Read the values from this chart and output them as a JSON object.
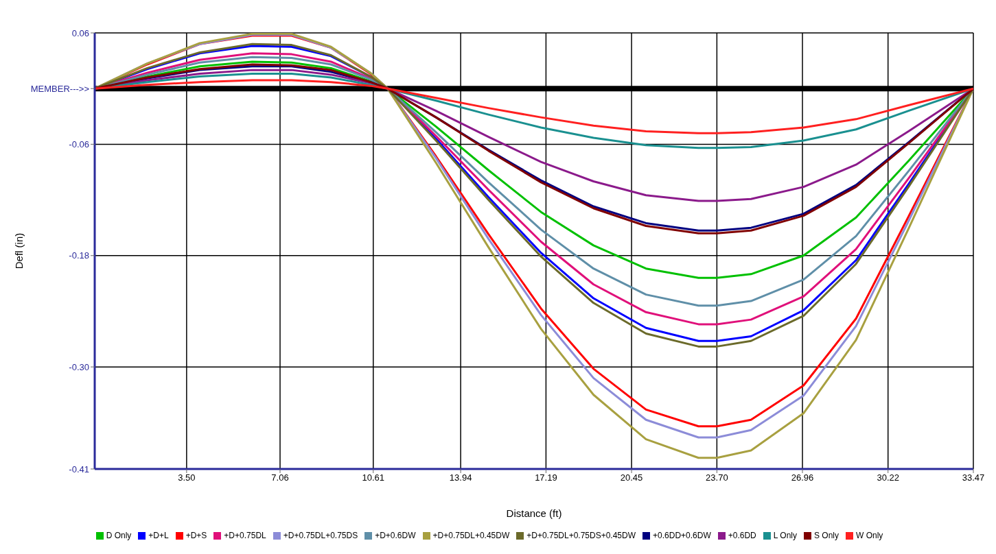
{
  "chart_data": {
    "type": "line",
    "xlabel": "Distance (ft)",
    "ylabel": "Defl (in)",
    "x": [
      0,
      2,
      4,
      6,
      7.5,
      9,
      10.5,
      11.16,
      13,
      15,
      17,
      19,
      21,
      23,
      23.7,
      25,
      27,
      29,
      31,
      33.47
    ],
    "xlim": [
      0,
      33.47
    ],
    "xticks": [
      {
        "value": 3.5,
        "label": "3.50"
      },
      7.06,
      10.61,
      13.94,
      17.19,
      20.45,
      {
        "value": 23.7,
        "label": "23.70"
      },
      26.96,
      30.22,
      33.47
    ],
    "ylim": [
      -0.41,
      0.06
    ],
    "yticks": [
      0.06,
      {
        "value": 0,
        "label": "MEMBER--->>"
      },
      -0.06,
      -0.18,
      {
        "value": -0.3,
        "label": "-0.30"
      },
      -0.41
    ],
    "grid": true,
    "legend": "bottom",
    "marker": "none",
    "line_style": "solid",
    "ref_lines": [
      {
        "axis": "y",
        "value": 0,
        "color": "#000000"
      }
    ],
    "series": [
      {
        "name": "D Only",
        "color": "#00c000",
        "values": [
          0,
          0.013,
          0.024,
          0.029,
          0.028,
          0.022,
          0.008,
          0,
          -0.041,
          -0.088,
          -0.133,
          -0.169,
          -0.194,
          -0.204,
          -0.204,
          -0.2,
          -0.18,
          -0.139,
          -0.078,
          0
        ]
      },
      {
        "name": "+D+L",
        "color": "#0000ff",
        "values": [
          0,
          0.021,
          0.038,
          0.046,
          0.045,
          0.035,
          0.013,
          0,
          -0.054,
          -0.117,
          -0.177,
          -0.226,
          -0.258,
          -0.272,
          -0.272,
          -0.267,
          -0.239,
          -0.185,
          -0.103,
          0
        ]
      },
      {
        "name": "+D+S",
        "color": "#ff0000",
        "values": [
          0,
          0.026,
          0.048,
          0.057,
          0.057,
          0.044,
          0.016,
          0,
          -0.073,
          -0.157,
          -0.237,
          -0.302,
          -0.346,
          -0.364,
          -0.364,
          -0.357,
          -0.32,
          -0.248,
          -0.138,
          0
        ]
      },
      {
        "name": "+D+0.75DL",
        "color": "#e0107a",
        "values": [
          0,
          0.017,
          0.031,
          0.038,
          0.037,
          0.029,
          0.011,
          0,
          -0.051,
          -0.109,
          -0.165,
          -0.211,
          -0.241,
          -0.254,
          -0.254,
          -0.249,
          -0.224,
          -0.173,
          -0.097,
          0
        ]
      },
      {
        "name": "+D+0.75DL+0.75DS",
        "color": "#8c8cd8",
        "values": [
          0,
          0.027,
          0.048,
          0.058,
          0.058,
          0.044,
          0.017,
          0,
          -0.075,
          -0.162,
          -0.244,
          -0.312,
          -0.357,
          -0.376,
          -0.376,
          -0.368,
          -0.331,
          -0.256,
          -0.143,
          0
        ]
      },
      {
        "name": "+D+0.6DW",
        "color": "#5f8fa8",
        "values": [
          0,
          0.015,
          0.028,
          0.034,
          0.033,
          0.026,
          0.01,
          0,
          -0.047,
          -0.101,
          -0.152,
          -0.194,
          -0.222,
          -0.234,
          -0.234,
          -0.229,
          -0.206,
          -0.159,
          -0.089,
          0
        ]
      },
      {
        "name": "+D+0.75DL+0.45DW",
        "color": "#a8a040",
        "values": [
          0,
          0.027,
          0.049,
          0.059,
          0.059,
          0.045,
          0.017,
          0,
          -0.08,
          -0.171,
          -0.259,
          -0.33,
          -0.378,
          -0.398,
          -0.398,
          -0.39,
          -0.35,
          -0.271,
          -0.151,
          0
        ]
      },
      {
        "name": "+D+0.75DL+0.75DS+0.45DW",
        "color": "#6b6a2a",
        "values": [
          0,
          0.022,
          0.039,
          0.048,
          0.047,
          0.036,
          0.013,
          0,
          -0.056,
          -0.12,
          -0.181,
          -0.231,
          -0.264,
          -0.278,
          -0.278,
          -0.272,
          -0.245,
          -0.189,
          -0.106,
          0
        ]
      },
      {
        "name": "+0.6DD+0.6DW",
        "color": "#000080",
        "values": [
          0,
          0.011,
          0.02,
          0.024,
          0.024,
          0.018,
          0.007,
          0,
          -0.031,
          -0.066,
          -0.099,
          -0.127,
          -0.145,
          -0.153,
          -0.153,
          -0.15,
          -0.135,
          -0.104,
          -0.058,
          0
        ]
      },
      {
        "name": "+0.6DD",
        "color": "#8b1a8b",
        "values": [
          0,
          0.009,
          0.016,
          0.02,
          0.02,
          0.015,
          0.006,
          0,
          -0.024,
          -0.052,
          -0.079,
          -0.1,
          -0.115,
          -0.121,
          -0.121,
          -0.119,
          -0.106,
          -0.082,
          -0.046,
          0
        ]
      },
      {
        "name": "L Only",
        "color": "#1a9090",
        "values": [
          0,
          0.007,
          0.013,
          0.016,
          0.016,
          0.012,
          0.004,
          0,
          -0.013,
          -0.028,
          -0.042,
          -0.053,
          -0.061,
          -0.064,
          -0.064,
          -0.063,
          -0.056,
          -0.044,
          -0.024,
          0
        ]
      },
      {
        "name": "S Only",
        "color": "#800000",
        "values": [
          0,
          0.012,
          0.021,
          0.026,
          0.025,
          0.02,
          0.007,
          0,
          -0.031,
          -0.067,
          -0.101,
          -0.129,
          -0.148,
          -0.156,
          -0.156,
          -0.153,
          -0.137,
          -0.106,
          -0.059,
          0
        ]
      },
      {
        "name": "W Only",
        "color": "#ff2020",
        "values": [
          0,
          0.004,
          0.007,
          0.009,
          0.009,
          0.007,
          0.003,
          0,
          -0.01,
          -0.021,
          -0.031,
          -0.04,
          -0.046,
          -0.048,
          -0.048,
          -0.047,
          -0.042,
          -0.033,
          -0.018,
          0
        ]
      }
    ]
  }
}
